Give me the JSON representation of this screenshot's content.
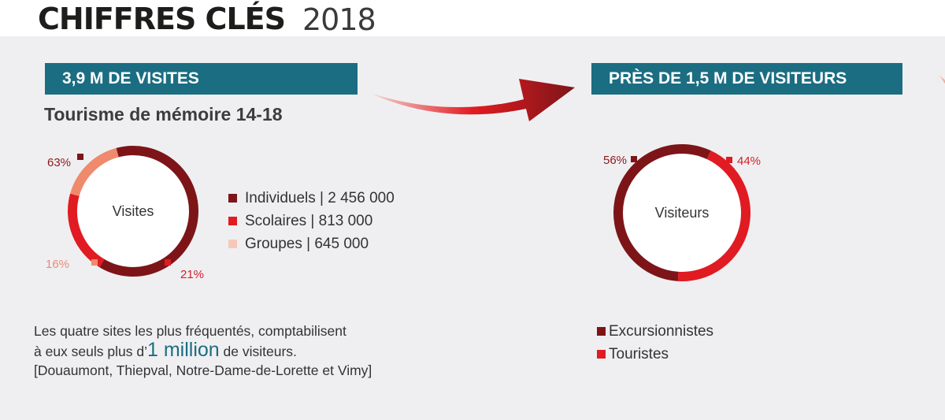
{
  "header": {
    "title": "CHIFFRES CLÉS",
    "year": "2018"
  },
  "left": {
    "banner": "3,9 M DE VISITES",
    "subtitle": "Tourisme de mémoire 14-18"
  },
  "right": {
    "banner": "PRÈS DE 1,5 M DE VISITEURS"
  },
  "note": {
    "line1": "Les quatre sites  les plus fréquentés, comptabilisent",
    "line2_prefix": "à eux seuls plus d’",
    "line2_highlight": "1 million",
    "line2_suffix": " de visiteurs.",
    "line3": "[Douaumont, Thiepval, Notre-Dame-de-Lorette et Vimy]"
  },
  "colors": {
    "teal": "#1b6d82",
    "dark_red": "#7d1518",
    "red": "#e11b22",
    "salmon": "#ef8a6d",
    "light_pink": "#f6c8b9"
  },
  "chart_data": [
    {
      "type": "pie",
      "title": "Visites",
      "series": [
        {
          "name": "Individuels",
          "value": 2456000,
          "percent_label": "63%",
          "legend_label": "Individuels | 2 456 000",
          "color": "#7d1518",
          "label_color": "#8b1a1e",
          "legend_color": "#7d1518"
        },
        {
          "name": "Scolaires",
          "value": 813000,
          "percent_label": "21%",
          "legend_label": "Scolaires | 813 000",
          "color": "#e11b22",
          "label_color": "#d4202a",
          "legend_color": "#e11b22"
        },
        {
          "name": "Groupes",
          "value": 645000,
          "percent_label": "16%",
          "legend_label": "Groupes | 645 000",
          "color": "#ef8a6d",
          "label_color": "#ec8a74",
          "legend_color": "#f6c8b9"
        }
      ]
    },
    {
      "type": "pie",
      "title": "Visiteurs",
      "series": [
        {
          "name": "Excursionnistes",
          "value": 56,
          "percent_label": "56%",
          "legend_label": "Excursionnistes",
          "color": "#7d1518",
          "label_color": "#8b1a1e",
          "legend_color": "#7d1518"
        },
        {
          "name": "Touristes",
          "value": 44,
          "percent_label": "44%",
          "legend_label": "Touristes",
          "color": "#e11b22",
          "label_color": "#d4202a",
          "legend_color": "#e11b22"
        }
      ]
    }
  ]
}
